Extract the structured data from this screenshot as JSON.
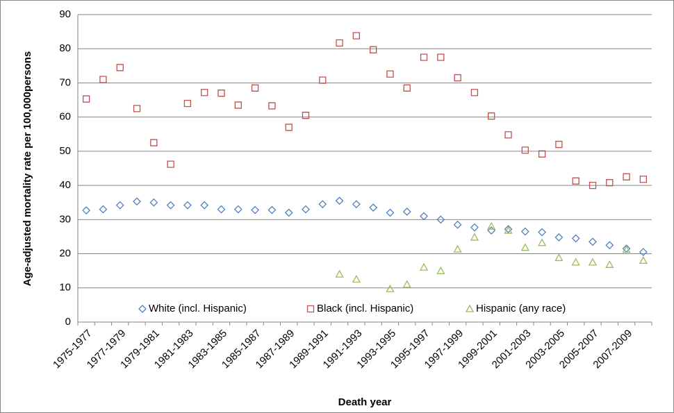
{
  "chart_data": {
    "type": "scatter",
    "y_label": "Age-adjusted mortality rate per 100,000persons",
    "x_label": "Death year",
    "categories": [
      "1975-1977",
      null,
      "1977-1979",
      null,
      "1979-1981",
      null,
      "1981-1983",
      null,
      "1983-1985",
      null,
      "1985-1987",
      null,
      "1987-1989",
      null,
      "1989-1991",
      null,
      "1991-1993",
      null,
      "1993-1995",
      null,
      "1995-1997",
      null,
      "1997-1999",
      null,
      "1999-2001",
      null,
      "2001-2003",
      null,
      "2003-2005",
      null,
      "2005-2007",
      null,
      "2007-2009",
      null
    ],
    "series": [
      {
        "name": "White (incl. Hispanic)",
        "color": "#4f81bd",
        "marker": "diamond",
        "values": [
          32.7,
          33,
          34.2,
          35.3,
          35,
          34.2,
          34.2,
          34.2,
          33,
          33,
          32.8,
          32.8,
          32,
          33,
          34.5,
          35.5,
          34.5,
          33.5,
          32,
          32.3,
          31,
          30,
          28.5,
          27.7,
          26.8,
          27.2,
          26.5,
          26.3,
          24.8,
          24.5,
          23.5,
          22.5,
          21.5,
          20.5
        ]
      },
      {
        "name": "Black (incl. Hispanic)",
        "color": "#c0504d",
        "marker": "square",
        "values": [
          65.3,
          71,
          74.5,
          62.5,
          52.5,
          46.2,
          64,
          67.2,
          67,
          63.5,
          68.5,
          63.3,
          57,
          60.5,
          70.8,
          81.7,
          83.8,
          79.7,
          72.6,
          68.5,
          77.5,
          77.5,
          71.5,
          67.2,
          60.3,
          54.8,
          50.3,
          49.2,
          52,
          41.3,
          40,
          40.8,
          42.5,
          41.8
        ]
      },
      {
        "name": "Hispanic (any race)",
        "color": "#9bbb59",
        "marker": "triangle",
        "values": [
          null,
          null,
          null,
          null,
          null,
          null,
          null,
          null,
          null,
          null,
          null,
          null,
          null,
          null,
          null,
          14,
          12.5,
          null,
          9.7,
          11,
          16,
          15,
          21.3,
          24.8,
          28,
          26.8,
          21.8,
          23.2,
          18.8,
          17.5,
          17.5,
          16.8,
          21.2,
          18
        ]
      }
    ],
    "ylim": [
      0,
      90
    ],
    "yticks": [
      0,
      10,
      20,
      30,
      40,
      50,
      60,
      70,
      80,
      90
    ],
    "grid": true,
    "legend": "lower center"
  }
}
